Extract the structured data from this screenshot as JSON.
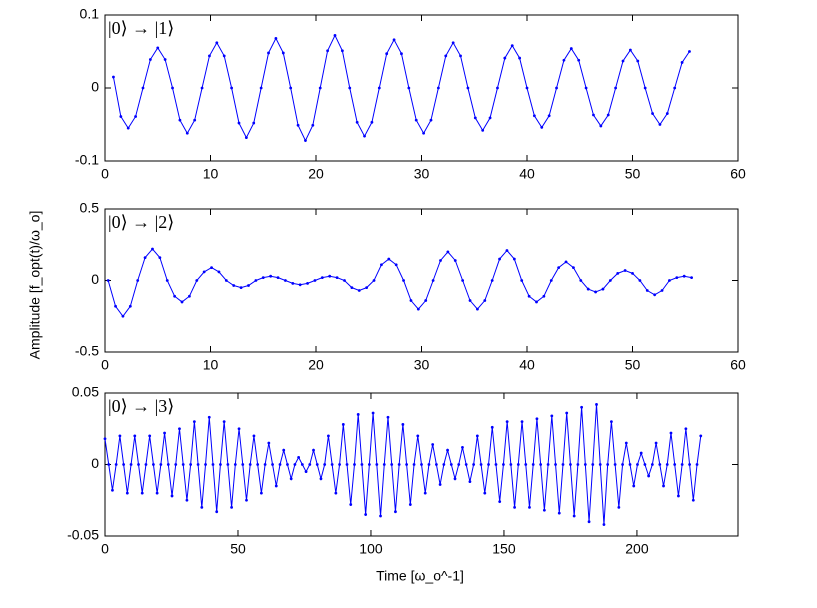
{
  "ylabel": "Amplitude [f_opt(t)/ω_o]",
  "xlabel": "Time [ω_o^-1]",
  "chart_data": [
    {
      "type": "line",
      "annotation": "|0⟩ → |1⟩",
      "xlim": [
        0,
        60
      ],
      "ylim": [
        -0.1,
        0.1
      ],
      "xticks": [
        0,
        10,
        20,
        30,
        40,
        50,
        60
      ],
      "yticks": [
        -0.1,
        0,
        0.1
      ],
      "color": "#0000ff",
      "x": [
        0.8,
        1.5,
        2.2,
        2.9,
        3.6,
        4.3,
        5,
        5.7,
        6.4,
        7.1,
        7.8,
        8.5,
        9.2,
        9.9,
        10.6,
        11.3,
        12,
        12.7,
        13.4,
        14.1,
        14.8,
        15.5,
        16.2,
        16.9,
        17.6,
        18.3,
        19,
        19.7,
        20.4,
        21.1,
        21.8,
        22.5,
        23.2,
        23.9,
        24.6,
        25.3,
        26,
        26.7,
        27.4,
        28.1,
        28.8,
        29.5,
        30.2,
        30.9,
        31.6,
        32.3,
        33,
        33.7,
        34.4,
        35.1,
        35.8,
        36.5,
        37.2,
        37.9,
        38.6,
        39.3,
        40,
        40.7,
        41.4,
        42.1,
        42.8,
        43.5,
        44.2,
        44.9,
        45.6,
        46.3,
        47,
        47.7,
        48.4,
        49.1,
        49.8,
        50.5,
        51.2,
        51.9,
        52.6,
        53.3,
        54,
        54.7,
        55.4
      ],
      "values": [
        0.015,
        -0.039,
        -0.055,
        -0.039,
        0,
        0.039,
        0.055,
        0.039,
        0,
        -0.044,
        -0.062,
        -0.044,
        0,
        0.044,
        0.062,
        0.044,
        0,
        -0.048,
        -0.068,
        -0.048,
        0,
        0.048,
        0.068,
        0.048,
        0,
        -0.051,
        -0.072,
        -0.051,
        0,
        0.051,
        0.072,
        0.051,
        0,
        -0.047,
        -0.066,
        -0.047,
        0,
        0.047,
        0.066,
        0.047,
        0,
        -0.044,
        -0.062,
        -0.044,
        0,
        0.044,
        0.062,
        0.044,
        0,
        -0.041,
        -0.058,
        -0.041,
        0,
        0.041,
        0.058,
        0.041,
        0,
        -0.038,
        -0.054,
        -0.038,
        0,
        0.038,
        0.054,
        0.038,
        0,
        -0.037,
        -0.052,
        -0.037,
        0,
        0.037,
        0.052,
        0.037,
        0,
        -0.035,
        -0.05,
        -0.035,
        0,
        0.035,
        0.05
      ]
    },
    {
      "type": "line",
      "annotation": "|0⟩ → |2⟩",
      "xlim": [
        0,
        60
      ],
      "ylim": [
        -0.5,
        0.5
      ],
      "xticks": [
        0,
        10,
        20,
        30,
        40,
        50,
        60
      ],
      "yticks": [
        -0.5,
        0,
        0.5
      ],
      "color": "#0000ff",
      "x": [
        0.3,
        1,
        1.7,
        2.4,
        3.1,
        3.8,
        4.5,
        5.2,
        5.9,
        6.6,
        7.3,
        8,
        8.7,
        9.4,
        10.1,
        10.8,
        11.5,
        12.2,
        12.9,
        13.6,
        14.3,
        15,
        15.7,
        16.4,
        17.1,
        17.8,
        18.5,
        19.2,
        19.9,
        20.6,
        21.3,
        22,
        22.7,
        23.4,
        24.1,
        24.8,
        25.5,
        26.2,
        26.9,
        27.6,
        28.3,
        29,
        29.7,
        30.4,
        31.1,
        31.8,
        32.5,
        33.2,
        33.9,
        34.6,
        35.3,
        36,
        36.7,
        37.4,
        38.1,
        38.8,
        39.5,
        40.2,
        40.9,
        41.6,
        42.3,
        43,
        43.7,
        44.4,
        45.1,
        45.8,
        46.5,
        47.2,
        47.9,
        48.6,
        49.3,
        50,
        50.7,
        51.4,
        52.1,
        52.8,
        53.5,
        54.2,
        54.9,
        55.6
      ],
      "values": [
        0,
        -0.18,
        -0.25,
        -0.18,
        0,
        0.16,
        0.22,
        0.16,
        0,
        -0.11,
        -0.15,
        -0.11,
        0,
        0.06,
        0.09,
        0.06,
        0,
        -0.035,
        -0.05,
        -0.035,
        0,
        0.02,
        0.03,
        0.02,
        0,
        -0.02,
        -0.03,
        -0.02,
        0,
        0.02,
        0.03,
        0.02,
        0,
        -0.05,
        -0.07,
        -0.05,
        0,
        0.11,
        0.15,
        0.11,
        0,
        -0.14,
        -0.2,
        -0.14,
        0,
        0.14,
        0.2,
        0.14,
        0,
        -0.14,
        -0.2,
        -0.14,
        0,
        0.15,
        0.21,
        0.15,
        0,
        -0.11,
        -0.15,
        -0.11,
        0,
        0.09,
        0.13,
        0.09,
        0,
        -0.06,
        -0.08,
        -0.06,
        0,
        0.05,
        0.07,
        0.05,
        0,
        -0.07,
        -0.1,
        -0.07,
        0,
        0.02,
        0.03,
        0.02
      ]
    },
    {
      "type": "line",
      "annotation": "|0⟩ → |3⟩",
      "xlim": [
        0,
        238
      ],
      "ylim": [
        -0.05,
        0.05
      ],
      "xticks": [
        0,
        50,
        100,
        150,
        200
      ],
      "yticks": [
        -0.05,
        0,
        0.05
      ],
      "color": "#0000ff",
      "x": [
        0,
        1.4,
        2.8,
        4.2,
        5.6,
        7,
        8.4,
        9.8,
        11.2,
        12.6,
        14,
        15.4,
        16.8,
        18.2,
        19.6,
        21,
        22.4,
        23.8,
        25.2,
        26.6,
        28,
        29.4,
        30.8,
        32.2,
        33.6,
        35,
        36.4,
        37.8,
        39.2,
        40.6,
        42,
        43.4,
        44.8,
        46.2,
        47.6,
        49,
        50.4,
        51.8,
        53.2,
        54.6,
        56,
        57.4,
        58.8,
        60.2,
        61.6,
        63,
        64.4,
        65.8,
        67.2,
        68.6,
        70,
        71.4,
        72.8,
        74.2,
        75.6,
        77,
        78.4,
        79.8,
        81.2,
        82.6,
        84,
        85.4,
        86.8,
        88.2,
        89.6,
        91,
        92.4,
        93.8,
        95.2,
        96.6,
        98,
        99.4,
        100.8,
        102.2,
        103.6,
        105,
        106.4,
        107.8,
        109.2,
        110.6,
        112,
        113.4,
        114.8,
        116.2,
        117.6,
        119,
        120.4,
        121.8,
        123.2,
        124.6,
        126,
        127.4,
        128.8,
        130.2,
        131.6,
        133,
        134.4,
        135.8,
        137.2,
        138.6,
        140,
        141.4,
        142.8,
        144.2,
        145.6,
        147,
        148.4,
        149.8,
        151.2,
        152.6,
        154,
        155.4,
        156.8,
        158.2,
        159.6,
        161,
        162.4,
        163.8,
        165.2,
        166.6,
        168,
        169.4,
        170.8,
        172.2,
        173.6,
        175,
        176.4,
        177.8,
        179.2,
        180.6,
        182,
        183.4,
        184.8,
        186.2,
        187.6,
        189,
        190.4,
        191.8,
        193.2,
        194.6,
        196,
        197.4,
        198.8,
        200.2,
        201.6,
        203,
        204.4,
        205.8,
        207.2,
        208.6,
        210,
        211.4,
        212.8,
        214.2,
        215.6,
        217,
        218.4,
        219.8,
        221.2,
        222.6,
        224
      ],
      "values": [
        0.018,
        0,
        -0.018,
        0,
        0.02,
        0,
        -0.02,
        0,
        0.02,
        0,
        -0.02,
        0,
        0.02,
        0,
        -0.02,
        0,
        0.022,
        0,
        -0.022,
        0,
        0.025,
        0,
        -0.025,
        0,
        0.03,
        0,
        -0.03,
        0,
        0.033,
        0,
        -0.033,
        0,
        0.03,
        0,
        -0.03,
        0,
        0.025,
        0,
        -0.025,
        0,
        0.02,
        0,
        -0.02,
        0,
        0.015,
        0,
        -0.015,
        0,
        0.01,
        0,
        -0.01,
        0,
        0.005,
        0,
        -0.005,
        0,
        0.01,
        0,
        -0.01,
        0,
        0.02,
        0,
        -0.02,
        0,
        0.028,
        0,
        -0.028,
        0,
        0.035,
        0,
        -0.035,
        0,
        0.036,
        0,
        -0.036,
        0,
        0.033,
        0,
        -0.033,
        0,
        0.028,
        0,
        -0.028,
        0,
        0.02,
        0,
        -0.02,
        0,
        0.014,
        0,
        -0.014,
        0,
        0.01,
        0,
        -0.01,
        0,
        0.012,
        0,
        -0.012,
        0,
        0.02,
        0,
        -0.02,
        0,
        0.026,
        0,
        -0.026,
        0,
        0.03,
        0,
        -0.03,
        0,
        0.03,
        0,
        -0.03,
        0,
        0.032,
        0,
        -0.032,
        0,
        0.034,
        0,
        -0.034,
        0,
        0.036,
        0,
        -0.036,
        0,
        0.04,
        0,
        -0.04,
        0,
        0.042,
        0,
        -0.042,
        0,
        0.03,
        0,
        -0.03,
        0,
        0.015,
        0,
        -0.015,
        0,
        0.008,
        0,
        -0.008,
        0,
        0.015,
        0,
        -0.015,
        0,
        0.022,
        0,
        -0.022,
        0,
        0.025,
        0,
        -0.025,
        0,
        0.02
      ]
    }
  ]
}
